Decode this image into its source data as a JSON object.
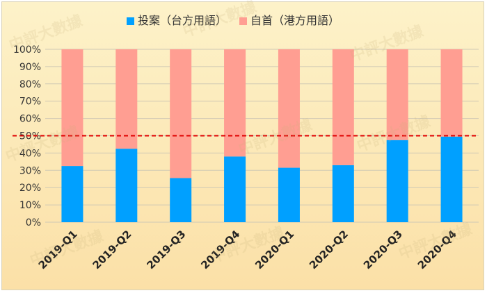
{
  "chart_data": {
    "type": "bar",
    "stacked": true,
    "categories": [
      "2019-Q1",
      "2019-Q2",
      "2019-Q3",
      "2019-Q4",
      "2020-Q1",
      "2020-Q2",
      "2020-Q3",
      "2020-Q4"
    ],
    "series": [
      {
        "name": "投案（台方用語）",
        "color": "#00a0ff",
        "values": [
          32.5,
          42.5,
          25.5,
          38,
          31.5,
          33,
          47.5,
          49.5
        ]
      },
      {
        "name": "自首（港方用語）",
        "color": "#ff9e92",
        "values": [
          67.5,
          57.5,
          74.5,
          62,
          68.5,
          67,
          52.5,
          50.5
        ]
      }
    ],
    "ylim": [
      0,
      100
    ],
    "yticks": [
      "0%",
      "10%",
      "20%",
      "30%",
      "40%",
      "50%",
      "60%",
      "70%",
      "80%",
      "90%",
      "100%"
    ],
    "reference_line": {
      "value": 50,
      "color": "#e00000",
      "style": "dashed"
    },
    "legend_position": "top-center",
    "grid": "horizontal"
  },
  "watermark": "中評大數據"
}
